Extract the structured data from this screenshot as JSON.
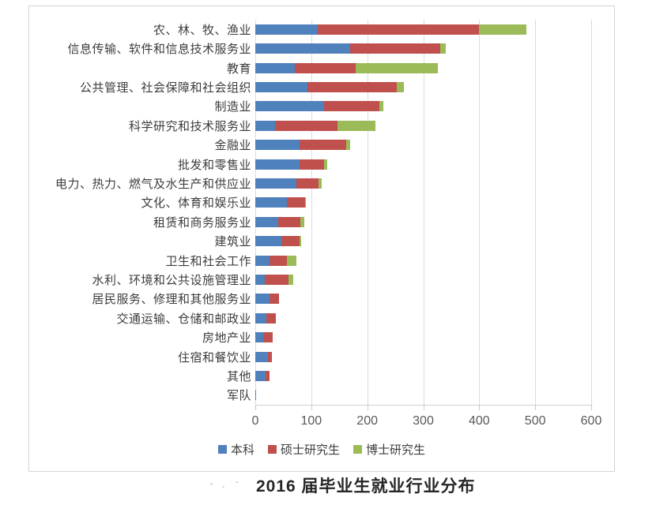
{
  "chart_data": {
    "type": "bar",
    "orientation": "horizontal",
    "stacked": true,
    "title": "2016 届毕业生就业行业分布",
    "categories": [
      "农、林、牧、渔业",
      "信息传输、软件和信息技术服务业",
      "教育",
      "公共管理、社会保障和社会组织",
      "制造业",
      "科学研究和技术服务业",
      "金融业",
      "批发和零售业",
      "电力、热力、燃气及水生产和供应业",
      "文化、体育和娱乐业",
      "租赁和商务服务业",
      "建筑业",
      "卫生和社会工作",
      "水利、环境和公共设施管理业",
      "居民服务、修理和其他服务业",
      "交通运输、仓储和邮政业",
      "房地产业",
      "住宿和餐饮业",
      "其他",
      "军队"
    ],
    "series": [
      {
        "name": "本科",
        "color": "#4F81BD",
        "values": [
          112,
          170,
          71,
          93,
          123,
          35,
          79,
          79,
          74,
          57,
          41,
          47,
          25,
          17,
          25,
          20,
          14,
          23,
          18,
          1
        ]
      },
      {
        "name": "硕士研究生",
        "color": "#C0504D",
        "values": [
          287,
          160,
          109,
          160,
          99,
          112,
          83,
          44,
          39,
          32,
          40,
          32,
          32,
          42,
          18,
          17,
          17,
          7,
          7,
          0
        ]
      },
      {
        "name": "博士研究生",
        "color": "#9BBB59",
        "values": [
          85,
          10,
          146,
          12,
          7,
          68,
          8,
          5,
          6,
          2,
          7,
          3,
          16,
          9,
          0,
          0,
          0,
          0,
          0,
          0
        ]
      }
    ],
    "x_axis": {
      "min": 0,
      "max": 600,
      "ticks": [
        0,
        100,
        200,
        300,
        400,
        500,
        600
      ]
    },
    "ylabel": "",
    "xlabel": "",
    "grid": true,
    "legend_position": "bottom"
  },
  "colors": {
    "undergrad": "#4F81BD",
    "master": "#C0504D",
    "doctor": "#9BBB59",
    "gridline": "#dcdcdc",
    "frame_border": "#d5d5d5",
    "tick_text": "#595959",
    "label_text": "#3d3d3d"
  }
}
